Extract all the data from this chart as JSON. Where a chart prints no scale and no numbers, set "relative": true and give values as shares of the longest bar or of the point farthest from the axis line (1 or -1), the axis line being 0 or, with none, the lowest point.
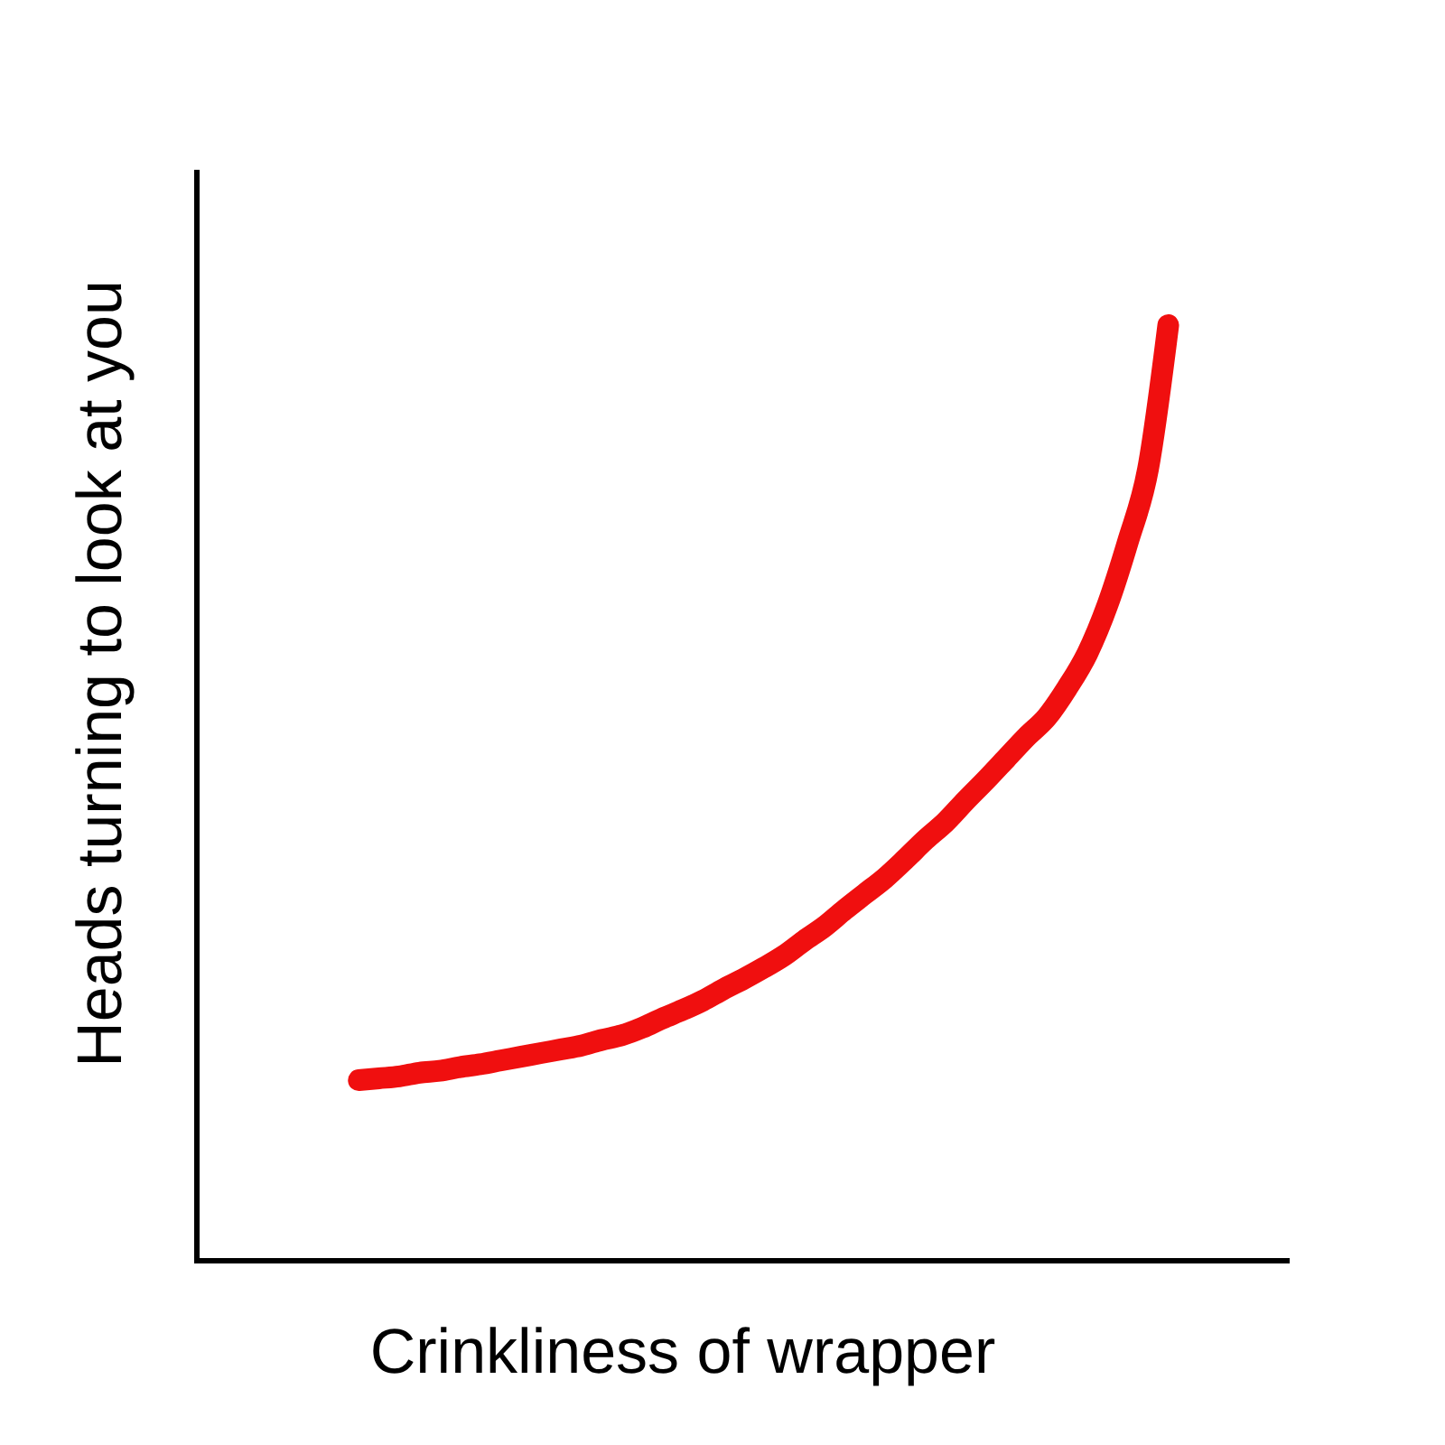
{
  "chart_data": {
    "type": "line",
    "xlabel": "Crinkliness of wrapper",
    "ylabel": "Heads turning to look at you",
    "relative": true,
    "color": "#f00f0f",
    "categories": [
      null,
      null,
      null,
      null,
      null,
      null,
      null,
      null,
      null,
      null,
      null,
      null,
      null,
      null,
      null,
      null,
      null,
      null,
      null,
      null,
      null,
      null,
      null,
      null,
      null,
      null,
      null,
      null,
      null,
      null,
      null,
      null,
      null,
      null,
      null,
      null,
      null,
      null,
      null,
      null,
      null,
      null,
      null,
      null,
      null,
      null,
      null,
      null,
      null,
      null,
      null,
      null,
      null,
      null,
      null
    ],
    "values": [
      null,
      null,
      null,
      null,
      null,
      null,
      null,
      null,
      0.193,
      0.195,
      0.197,
      0.201,
      0.203,
      0.207,
      0.21,
      0.214,
      0.218,
      0.222,
      0.226,
      0.23,
      0.236,
      0.241,
      0.249,
      0.259,
      0.268,
      0.278,
      0.29,
      0.301,
      0.313,
      0.326,
      0.342,
      0.357,
      0.375,
      0.392,
      0.409,
      0.429,
      0.45,
      0.469,
      0.492,
      0.514,
      0.537,
      0.56,
      0.581,
      0.612,
      0.649,
      0.701,
      0.768,
      0.846,
      1,
      null,
      null,
      null,
      null,
      null,
      null
    ]
  }
}
